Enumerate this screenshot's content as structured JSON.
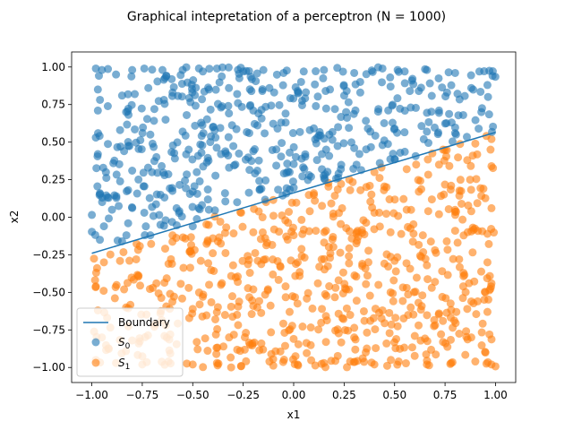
{
  "chart_data": {
    "type": "scatter",
    "title": "Graphical intepretation of a perceptron (N = 1000)",
    "xlabel": "x1",
    "ylabel": "x2",
    "xlim": [
      -1.1,
      1.1
    ],
    "ylim": [
      -1.1,
      1.1
    ],
    "xticks": [
      -1.0,
      -0.75,
      -0.5,
      -0.25,
      0.0,
      0.25,
      0.5,
      0.75,
      1.0
    ],
    "yticks": [
      -1.0,
      -0.75,
      -0.5,
      -0.25,
      0.0,
      0.25,
      0.5,
      0.75,
      1.0
    ],
    "xtick_labels": [
      "−1.00",
      "−0.75",
      "−0.50",
      "−0.25",
      "0.00",
      "0.25",
      "0.50",
      "0.75",
      "1.00"
    ],
    "ytick_labels": [
      "−1.00",
      "−0.75",
      "−0.50",
      "−0.25",
      "0.00",
      "0.25",
      "0.50",
      "0.75",
      "1.00"
    ],
    "grid": false,
    "legend_placement": "lower-left",
    "boundary": {
      "name": "Boundary",
      "color": "#1f77b4",
      "x": [
        -1.0,
        1.0
      ],
      "y": [
        -0.24,
        0.565
      ]
    },
    "series": [
      {
        "name": "S0",
        "legend_main": "S",
        "legend_sub": "0",
        "color": "#1f77b4",
        "opacity": 0.6,
        "region": "above-boundary",
        "count_estimate": 400,
        "sample_points": [
          [
            -0.98,
            0.99
          ],
          [
            -0.95,
            0.98
          ],
          [
            -0.88,
            0.95
          ],
          [
            -0.8,
            0.98
          ],
          [
            -0.74,
            0.99
          ],
          [
            -0.65,
            0.98
          ],
          [
            -0.55,
            0.98
          ],
          [
            -0.45,
            0.97
          ],
          [
            -0.38,
            0.99
          ],
          [
            -0.25,
            0.97
          ],
          [
            -0.15,
            0.98
          ],
          [
            -0.05,
            0.96
          ],
          [
            0.05,
            0.97
          ],
          [
            0.15,
            0.98
          ],
          [
            0.3,
            0.96
          ],
          [
            0.44,
            0.99
          ],
          [
            0.55,
            0.97
          ],
          [
            0.66,
            0.98
          ],
          [
            0.8,
            0.96
          ],
          [
            0.92,
            0.97
          ],
          [
            -0.97,
            0.85
          ],
          [
            -0.85,
            0.81
          ],
          [
            -0.72,
            0.86
          ],
          [
            -0.6,
            0.83
          ],
          [
            -0.42,
            0.85
          ],
          [
            -0.28,
            0.82
          ],
          [
            -0.12,
            0.86
          ],
          [
            0.02,
            0.84
          ],
          [
            0.18,
            0.85
          ],
          [
            0.33,
            0.83
          ],
          [
            0.48,
            0.87
          ],
          [
            0.62,
            0.84
          ],
          [
            0.76,
            0.83
          ],
          [
            0.88,
            0.86
          ],
          [
            0.96,
            0.88
          ],
          [
            -0.97,
            0.71
          ],
          [
            -0.83,
            0.7
          ],
          [
            -0.69,
            0.72
          ],
          [
            -0.53,
            0.68
          ],
          [
            -0.36,
            0.73
          ],
          [
            -0.2,
            0.71
          ],
          [
            -0.04,
            0.69
          ],
          [
            0.11,
            0.74
          ],
          [
            0.26,
            0.7
          ],
          [
            0.42,
            0.72
          ],
          [
            0.58,
            0.73
          ],
          [
            0.72,
            0.71
          ],
          [
            0.84,
            0.68
          ],
          [
            0.93,
            0.7
          ],
          [
            -0.98,
            0.53
          ],
          [
            -0.86,
            0.58
          ],
          [
            -0.71,
            0.55
          ],
          [
            -0.55,
            0.57
          ],
          [
            -0.4,
            0.6
          ],
          [
            -0.22,
            0.56
          ],
          [
            -0.08,
            0.59
          ],
          [
            0.08,
            0.58
          ],
          [
            0.22,
            0.6
          ],
          [
            0.38,
            0.57
          ],
          [
            0.5,
            0.59
          ],
          [
            0.66,
            0.57
          ],
          [
            0.8,
            0.56
          ],
          [
            -0.97,
            0.42
          ],
          [
            -0.84,
            0.44
          ],
          [
            -0.68,
            0.4
          ],
          [
            -0.52,
            0.45
          ],
          [
            -0.36,
            0.42
          ],
          [
            -0.2,
            0.44
          ],
          [
            -0.02,
            0.43
          ],
          [
            0.14,
            0.42
          ],
          [
            0.3,
            0.46
          ],
          [
            0.44,
            0.48
          ],
          [
            -0.93,
            0.3
          ],
          [
            -0.8,
            0.31
          ],
          [
            -0.64,
            0.28
          ],
          [
            -0.48,
            0.3
          ],
          [
            -0.32,
            0.33
          ],
          [
            -0.18,
            0.31
          ],
          [
            -0.02,
            0.3
          ],
          [
            0.14,
            0.32
          ],
          [
            -0.96,
            0.16
          ],
          [
            -0.82,
            0.18
          ],
          [
            -0.66,
            0.15
          ],
          [
            -0.5,
            0.17
          ],
          [
            -0.34,
            0.16
          ],
          [
            -0.16,
            0.19
          ],
          [
            -0.9,
            0.05
          ],
          [
            -0.74,
            0.03
          ],
          [
            -0.58,
            0.06
          ],
          [
            -0.42,
            0.05
          ],
          [
            -0.28,
            0.1
          ],
          [
            -0.94,
            -0.06
          ],
          [
            -0.82,
            -0.04
          ],
          [
            -0.66,
            -0.05
          ],
          [
            -0.5,
            -0.06
          ],
          [
            -0.96,
            -0.15
          ],
          [
            -0.85,
            -0.16
          ],
          [
            -0.71,
            -0.12
          ]
        ]
      },
      {
        "name": "S1",
        "legend_main": "S",
        "legend_sub": "1",
        "color": "#ff7f0e",
        "opacity": 0.6,
        "region": "below-boundary",
        "count_estimate": 600,
        "sample_points": [
          [
            -0.98,
            -0.95
          ],
          [
            -0.88,
            -0.97
          ],
          [
            -0.75,
            -0.98
          ],
          [
            -0.62,
            -0.96
          ],
          [
            -0.5,
            -0.98
          ],
          [
            -0.38,
            -0.97
          ],
          [
            -0.26,
            -0.99
          ],
          [
            -0.12,
            -0.96
          ],
          [
            0.02,
            -0.98
          ],
          [
            0.15,
            -0.97
          ],
          [
            0.28,
            -0.96
          ],
          [
            0.4,
            -0.98
          ],
          [
            0.52,
            -0.96
          ],
          [
            0.66,
            -0.98
          ],
          [
            0.78,
            -0.97
          ],
          [
            0.9,
            -0.96
          ],
          [
            0.98,
            -0.98
          ],
          [
            -0.95,
            -0.8
          ],
          [
            -0.8,
            -0.82
          ],
          [
            -0.64,
            -0.79
          ],
          [
            -0.48,
            -0.83
          ],
          [
            -0.32,
            -0.8
          ],
          [
            -0.16,
            -0.84
          ],
          [
            0.0,
            -0.81
          ],
          [
            0.16,
            -0.83
          ],
          [
            0.3,
            -0.8
          ],
          [
            0.46,
            -0.84
          ],
          [
            0.6,
            -0.79
          ],
          [
            0.74,
            -0.83
          ],
          [
            0.88,
            -0.8
          ],
          [
            0.97,
            -0.78
          ],
          [
            -0.97,
            -0.62
          ],
          [
            -0.83,
            -0.6
          ],
          [
            -0.66,
            -0.64
          ],
          [
            -0.5,
            -0.61
          ],
          [
            -0.34,
            -0.65
          ],
          [
            -0.18,
            -0.6
          ],
          [
            -0.02,
            -0.63
          ],
          [
            0.14,
            -0.61
          ],
          [
            0.28,
            -0.65
          ],
          [
            0.44,
            -0.62
          ],
          [
            0.58,
            -0.6
          ],
          [
            0.72,
            -0.64
          ],
          [
            0.86,
            -0.61
          ],
          [
            0.96,
            -0.63
          ],
          [
            -0.98,
            -0.46
          ],
          [
            -0.84,
            -0.48
          ],
          [
            -0.68,
            -0.44
          ],
          [
            -0.52,
            -0.47
          ],
          [
            -0.36,
            -0.45
          ],
          [
            -0.2,
            -0.48
          ],
          [
            -0.04,
            -0.46
          ],
          [
            0.12,
            -0.44
          ],
          [
            0.26,
            -0.48
          ],
          [
            0.42,
            -0.45
          ],
          [
            0.56,
            -0.47
          ],
          [
            0.7,
            -0.43
          ],
          [
            0.84,
            -0.46
          ],
          [
            0.98,
            -0.44
          ],
          [
            -0.94,
            -0.3
          ],
          [
            -0.78,
            -0.28
          ],
          [
            -0.62,
            -0.31
          ],
          [
            -0.46,
            -0.29
          ],
          [
            -0.3,
            -0.32
          ],
          [
            -0.14,
            -0.28
          ],
          [
            0.02,
            -0.3
          ],
          [
            0.18,
            -0.27
          ],
          [
            0.34,
            -0.31
          ],
          [
            0.5,
            -0.29
          ],
          [
            0.66,
            -0.32
          ],
          [
            0.82,
            -0.28
          ],
          [
            0.96,
            -0.3
          ],
          [
            -0.6,
            -0.12
          ],
          [
            -0.4,
            -0.14
          ],
          [
            -0.2,
            -0.1
          ],
          [
            0.0,
            -0.12
          ],
          [
            0.16,
            -0.09
          ],
          [
            0.32,
            -0.13
          ],
          [
            0.48,
            -0.1
          ],
          [
            0.64,
            -0.12
          ],
          [
            0.8,
            -0.09
          ],
          [
            0.96,
            -0.11
          ],
          [
            -0.26,
            0.03
          ],
          [
            -0.1,
            0.01
          ],
          [
            0.08,
            0.04
          ],
          [
            0.24,
            0.06
          ],
          [
            0.4,
            0.03
          ],
          [
            0.56,
            0.05
          ],
          [
            0.72,
            0.02
          ],
          [
            0.88,
            0.04
          ],
          [
            0.98,
            0.06
          ],
          [
            0.1,
            0.16
          ],
          [
            0.28,
            0.18
          ],
          [
            0.46,
            0.2
          ],
          [
            0.62,
            0.17
          ],
          [
            0.78,
            0.21
          ],
          [
            0.94,
            0.19
          ],
          [
            0.4,
            0.3
          ],
          [
            0.56,
            0.32
          ],
          [
            0.72,
            0.35
          ],
          [
            0.86,
            0.38
          ],
          [
            0.98,
            0.34
          ],
          [
            0.74,
            0.45
          ],
          [
            0.9,
            0.49
          ],
          [
            0.98,
            0.52
          ]
        ]
      }
    ]
  }
}
